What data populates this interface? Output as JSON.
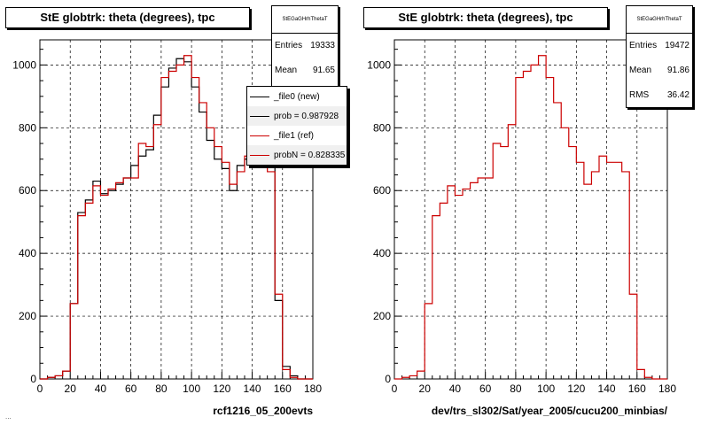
{
  "colors": {
    "new": "#000000",
    "ref": "#cc0000"
  },
  "footer_text": "...",
  "chart_data": [
    {
      "type": "histogram",
      "title": "StE globtrk: theta (degrees), tpc",
      "xlabel": "rcf1216_05_200evts",
      "ylabel": "",
      "xlim": [
        0,
        180
      ],
      "ylim": [
        0,
        1080
      ],
      "xticks": [
        0,
        20,
        40,
        60,
        80,
        100,
        120,
        140,
        160,
        180
      ],
      "yticks": [
        0,
        200,
        400,
        600,
        800,
        1000
      ],
      "grid": true,
      "bin_edges": [
        0,
        5,
        10,
        15,
        20,
        25,
        30,
        35,
        40,
        45,
        50,
        55,
        60,
        65,
        70,
        75,
        80,
        85,
        90,
        95,
        100,
        105,
        110,
        115,
        120,
        125,
        130,
        135,
        140,
        145,
        150,
        155,
        160,
        165,
        170,
        175,
        180
      ],
      "series": [
        {
          "name": "_file0 (new)",
          "color": "#000000",
          "values": [
            0,
            5,
            10,
            25,
            240,
            530,
            570,
            630,
            590,
            600,
            620,
            640,
            680,
            710,
            730,
            840,
            930,
            990,
            1020,
            1010,
            930,
            850,
            760,
            700,
            670,
            600,
            680,
            700,
            700,
            700,
            710,
            250,
            40,
            10,
            0,
            0
          ]
        },
        {
          "name": "_file1 (ref)",
          "color": "#cc0000",
          "values": [
            0,
            5,
            10,
            25,
            240,
            520,
            560,
            615,
            585,
            605,
            625,
            640,
            640,
            750,
            740,
            810,
            960,
            980,
            1000,
            1030,
            960,
            880,
            800,
            740,
            690,
            620,
            660,
            710,
            690,
            690,
            660,
            270,
            30,
            5,
            0,
            0
          ]
        }
      ],
      "stats": {
        "header": "StEGaGHrhThetaT",
        "rows": [
          {
            "label": "Entries",
            "value": "19333"
          },
          {
            "label": "Mean",
            "value": "91.65"
          }
        ]
      },
      "legend": {
        "position": "top-right",
        "entries": [
          {
            "label": "_file0 (new)",
            "color": "#000000"
          },
          {
            "label": "prob = 0.987928",
            "color": "#000000"
          },
          {
            "label": "_file1 (ref)",
            "color": "#cc0000"
          },
          {
            "label": "probN = 0.828335",
            "color": "#cc0000"
          }
        ]
      }
    },
    {
      "type": "histogram",
      "title": "StE globtrk: theta (degrees), tpc",
      "xlabel": "dev/trs_sl302/Sat/year_2005/cucu200_minbias/",
      "ylabel": "",
      "xlim": [
        0,
        180
      ],
      "ylim": [
        0,
        1080
      ],
      "xticks": [
        0,
        20,
        40,
        60,
        80,
        100,
        120,
        140,
        160,
        180
      ],
      "yticks": [
        0,
        200,
        400,
        600,
        800,
        1000
      ],
      "grid": true,
      "bin_edges": [
        0,
        5,
        10,
        15,
        20,
        25,
        30,
        35,
        40,
        45,
        50,
        55,
        60,
        65,
        70,
        75,
        80,
        85,
        90,
        95,
        100,
        105,
        110,
        115,
        120,
        125,
        130,
        135,
        140,
        145,
        150,
        155,
        160,
        165,
        170,
        175,
        180
      ],
      "series": [
        {
          "name": "",
          "color": "#cc0000",
          "values": [
            0,
            5,
            10,
            25,
            240,
            520,
            560,
            615,
            585,
            605,
            625,
            640,
            640,
            750,
            740,
            810,
            960,
            980,
            1000,
            1030,
            960,
            880,
            800,
            740,
            690,
            620,
            660,
            710,
            690,
            690,
            660,
            270,
            30,
            5,
            0,
            0
          ]
        }
      ],
      "stats": {
        "header": "StEGaGHrhThetaT",
        "rows": [
          {
            "label": "Entries",
            "value": "19472"
          },
          {
            "label": "Mean",
            "value": "91.86"
          },
          {
            "label": "RMS",
            "value": "36.42"
          }
        ]
      }
    }
  ]
}
